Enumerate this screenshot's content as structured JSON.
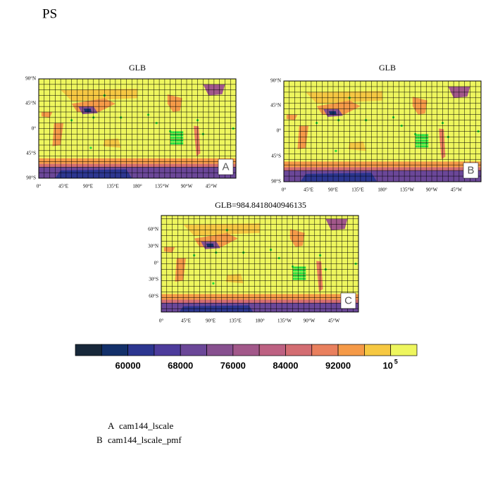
{
  "title": "PS",
  "panels": [
    {
      "title": "GLB",
      "letter": "A",
      "lat_labels": [
        "90°N",
        "45°N",
        "0°",
        "45°S",
        "90°S"
      ],
      "lon_labels": [
        "0°",
        "45°E",
        "90°E",
        "135°E",
        "180°",
        "135°W",
        "90°W",
        "45°W"
      ]
    },
    {
      "title": "GLB",
      "letter": "B",
      "lat_labels": [
        "90°N",
        "45°N",
        "0°",
        "45°S",
        "90°S"
      ],
      "lon_labels": [
        "0°",
        "45°E",
        "90°E",
        "135°E",
        "180°",
        "135°W",
        "90°W",
        "45°W"
      ]
    },
    {
      "title": "GLB=984.8418040946135",
      "letter": "C",
      "lat_labels": [
        "60°N",
        "30°N",
        "0°",
        "30°S",
        "60°S"
      ],
      "lon_labels": [
        "0°",
        "45°E",
        "90°E",
        "135°E",
        "180°",
        "135°W",
        "90°W",
        "45°W"
      ]
    }
  ],
  "colorbar": {
    "colors": [
      "#17283a",
      "#13306a",
      "#2c3690",
      "#4d3c9c",
      "#6b4798",
      "#87508f",
      "#a2588a",
      "#bd6182",
      "#d36d72",
      "#e9805e",
      "#f59a48",
      "#f6c842",
      "#eef65e"
    ],
    "labels": [
      "60000",
      "68000",
      "76000",
      "84000",
      "92000",
      {
        "base": "10",
        "exponent": "5"
      }
    ]
  },
  "legend": [
    {
      "key": "A",
      "name": "cam144_lscale"
    },
    {
      "key": "B",
      "name": "cam144_lscale_pmf"
    }
  ]
}
